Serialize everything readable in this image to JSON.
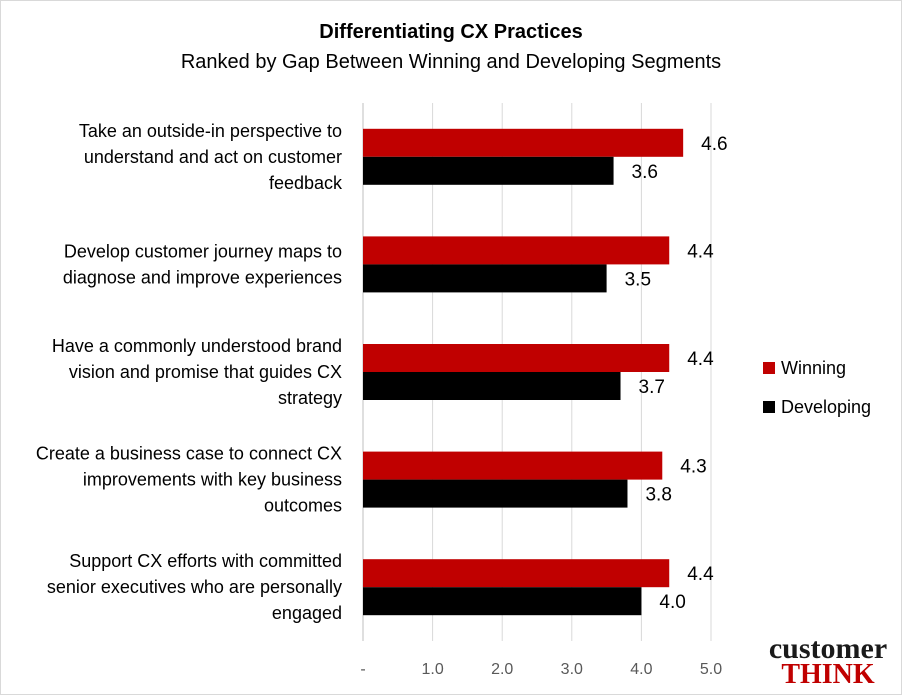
{
  "chart_data": {
    "type": "bar",
    "orientation": "horizontal",
    "title": "Differentiating CX Practices",
    "subtitle": "Ranked by Gap Between Winning and Developing Segments",
    "categories": [
      [
        "Take an outside-in perspective to",
        "understand and act on customer",
        "feedback"
      ],
      [
        "Develop customer journey maps to",
        "diagnose and improve experiences"
      ],
      [
        "Have a commonly understood brand",
        "vision and promise that guides CX",
        "strategy"
      ],
      [
        "Create a business case to connect CX",
        "improvements with key business",
        "outcomes"
      ],
      [
        "Support CX efforts with committed",
        "senior executives who are personally",
        "engaged"
      ]
    ],
    "series": [
      {
        "name": "Winning",
        "color": "#c00000",
        "values": [
          4.6,
          4.4,
          4.4,
          4.3,
          4.4
        ],
        "labels": [
          "4.6",
          "4.4",
          "4.4",
          "4.3",
          "4.4"
        ]
      },
      {
        "name": "Developing",
        "color": "#000000",
        "values": [
          3.6,
          3.5,
          3.7,
          3.8,
          4.0
        ],
        "labels": [
          "3.6",
          "3.5",
          "3.7",
          "3.8",
          "4.0"
        ]
      }
    ],
    "xlim": [
      0,
      5
    ],
    "xticks": [
      0,
      1,
      2,
      3,
      4,
      5
    ],
    "xtick_labels": [
      "-",
      "1.0",
      "2.0",
      "3.0",
      "4.0",
      "5.0"
    ],
    "gridlines": true,
    "gridline_color": "#d9d9d9",
    "legend_position": "right"
  },
  "logo": {
    "top": "customer",
    "bottom": "THINK"
  }
}
